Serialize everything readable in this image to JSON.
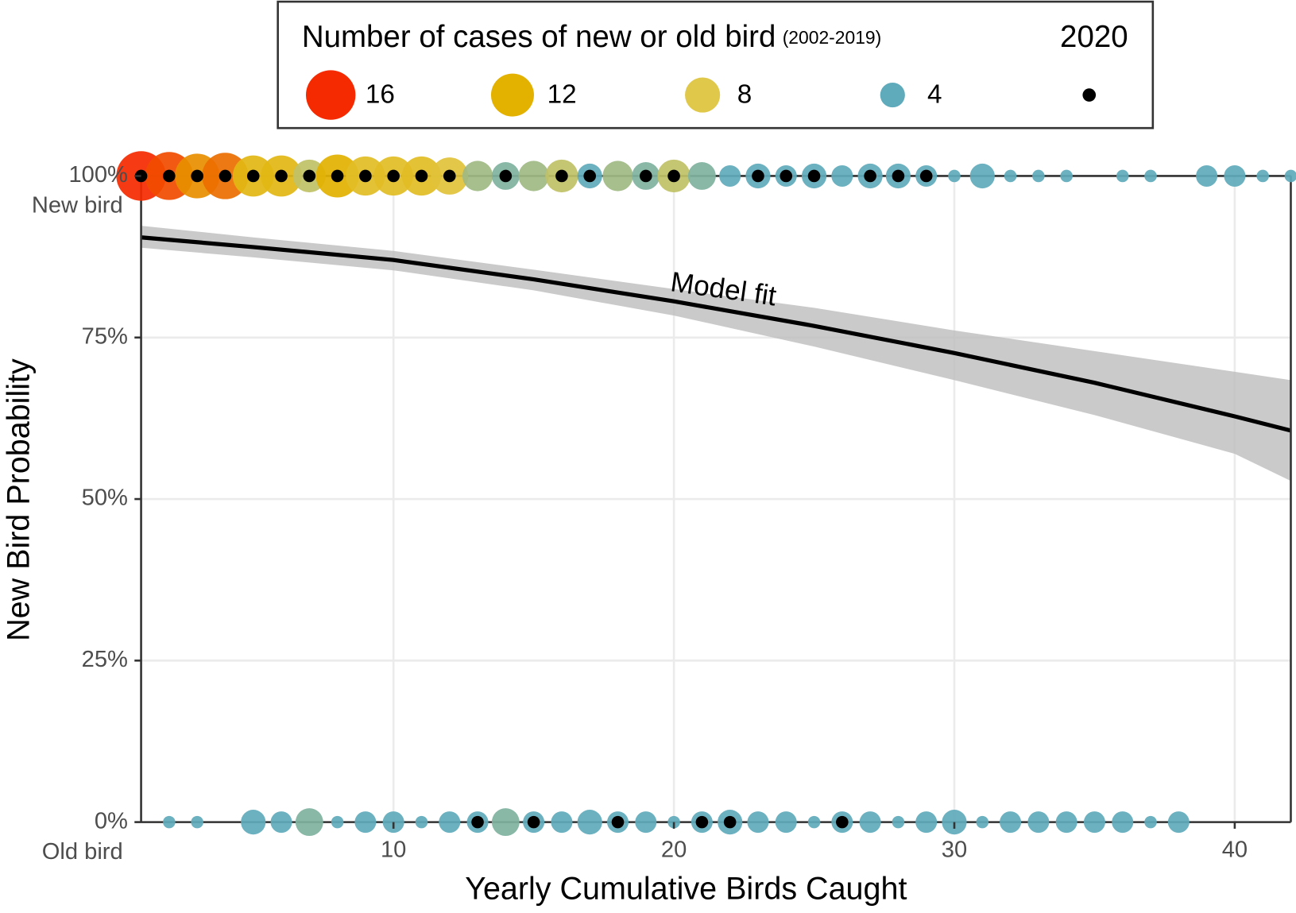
{
  "chart_data": {
    "type": "scatter",
    "x_label": "Yearly Cumulative Birds Caught",
    "y_label": "New Bird Probability",
    "xlim": [
      1,
      42
    ],
    "ylim": [
      0,
      100
    ],
    "xticks": [
      10,
      20,
      30,
      40
    ],
    "yticks": [
      {
        "value": 0,
        "label": "0%"
      },
      {
        "value": 25,
        "label": "25%"
      },
      {
        "value": 50,
        "label": "50%"
      },
      {
        "value": 75,
        "label": "75%"
      },
      {
        "value": 100,
        "label": "100%"
      }
    ],
    "grid": true,
    "x": [
      1,
      2,
      3,
      4,
      5,
      6,
      7,
      8,
      9,
      10,
      11,
      12,
      13,
      14,
      15,
      16,
      17,
      18,
      19,
      20,
      21,
      22,
      23,
      24,
      25,
      26,
      27,
      28,
      29,
      30,
      31,
      32,
      33,
      34,
      35,
      36,
      37,
      38,
      39,
      40,
      41,
      42
    ],
    "series": [
      {
        "name": "New bird",
        "y": 100,
        "values": [
          16,
          15,
          13,
          14,
          11,
          11,
          7,
          12,
          10,
          10,
          10,
          9,
          6,
          5,
          6,
          7,
          4,
          6,
          5,
          7,
          5,
          3,
          4,
          3,
          4,
          3,
          4,
          4,
          3,
          1,
          4,
          1,
          1,
          1,
          null,
          1,
          1,
          null,
          3,
          3,
          1,
          1
        ]
      },
      {
        "name": "Old bird",
        "y": 0,
        "values": [
          null,
          1,
          1,
          null,
          4,
          3,
          5,
          1,
          3,
          3,
          1,
          3,
          3,
          5,
          3,
          3,
          4,
          3,
          3,
          1,
          3,
          4,
          3,
          3,
          1,
          3,
          3,
          1,
          3,
          4,
          1,
          3,
          3,
          3,
          3,
          3,
          1,
          3,
          null,
          null,
          null,
          null
        ]
      }
    ],
    "points_2020": {
      "name": "2020",
      "color": "#000000",
      "new_x": [
        1,
        2,
        3,
        4,
        5,
        6,
        7,
        8,
        9,
        10,
        11,
        12,
        14,
        16,
        17,
        19,
        20,
        23,
        24,
        25,
        27,
        28,
        29
      ],
      "old_x": [
        13,
        15,
        18,
        21,
        22,
        26
      ]
    },
    "size_legend": {
      "title": "Number of cases of new or old bird",
      "subtitle": "(2002-2019)",
      "values": [
        16,
        12,
        8,
        4
      ],
      "colors": [
        "#f52a00",
        "#e3b100",
        "#e0c84a",
        "#5faabb"
      ]
    },
    "fit": {
      "label": "Model fit",
      "color": "#000000",
      "band_color": "#bdbdbd",
      "x": [
        1,
        5,
        10,
        15,
        20,
        25,
        30,
        35,
        40,
        42
      ],
      "values": [
        90.5,
        89.0,
        87.0,
        84.0,
        80.6,
        76.8,
        72.6,
        68.0,
        62.8,
        60.6
      ],
      "lower": [
        88.9,
        87.4,
        85.4,
        82.3,
        78.4,
        73.6,
        68.4,
        63.0,
        57.0,
        52.8
      ],
      "upper": [
        92.3,
        90.5,
        88.4,
        85.5,
        82.5,
        79.6,
        76.1,
        72.9,
        69.7,
        68.4
      ]
    }
  }
}
